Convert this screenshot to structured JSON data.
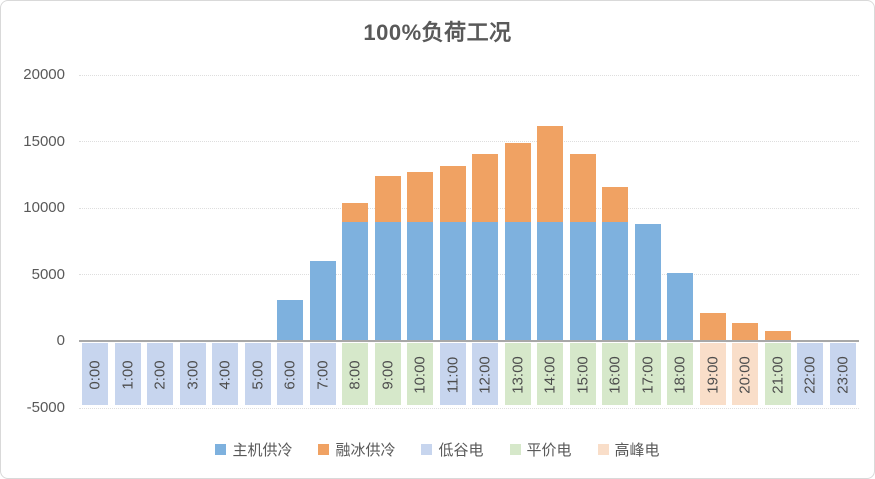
{
  "chart_data": {
    "type": "bar",
    "stacked": true,
    "title": "100%负荷工况",
    "xlabel": "",
    "ylabel": "",
    "ylim": [
      -5000,
      20000
    ],
    "yticks": [
      20000,
      15000,
      10000,
      5000,
      0,
      -5000
    ],
    "grid": true,
    "legend_position": "bottom",
    "categories": [
      "0:00",
      "1:00",
      "2:00",
      "3:00",
      "4:00",
      "5:00",
      "6:00",
      "7:00",
      "8:00",
      "9:00",
      "10:00",
      "11:00",
      "12:00",
      "13:00",
      "14:00",
      "15:00",
      "16:00",
      "17:00",
      "18:00",
      "19:00",
      "20:00",
      "21:00",
      "22:00",
      "23:00"
    ],
    "series": [
      {
        "name": "主机供冷",
        "color": "#7EB1DE",
        "values": [
          0,
          0,
          0,
          0,
          0,
          0,
          3100,
          6000,
          9000,
          9000,
          9000,
          9000,
          9000,
          9000,
          9000,
          9000,
          9000,
          8800,
          5100,
          0,
          0,
          0,
          0,
          0
        ]
      },
      {
        "name": "融冰供冷",
        "color": "#F0A263",
        "values": [
          0,
          0,
          0,
          0,
          0,
          0,
          0,
          0,
          1400,
          3400,
          3700,
          4200,
          5100,
          5900,
          7200,
          5100,
          2600,
          0,
          0,
          2100,
          1400,
          800,
          0,
          0
        ]
      },
      {
        "name": "低谷电",
        "color": "#C7D5EE",
        "values": [
          -5000,
          -5000,
          -5000,
          -5000,
          -5000,
          -5000,
          -5000,
          -5000,
          0,
          0,
          0,
          -5000,
          -5000,
          0,
          0,
          0,
          0,
          0,
          0,
          0,
          0,
          0,
          -5000,
          -5000
        ]
      },
      {
        "name": "平价电",
        "color": "#D6E8CA",
        "values": [
          0,
          0,
          0,
          0,
          0,
          0,
          0,
          0,
          -5000,
          -5000,
          -5000,
          0,
          0,
          -5000,
          -5000,
          -5000,
          -5000,
          -5000,
          -5000,
          0,
          0,
          -5000,
          0,
          0
        ]
      },
      {
        "name": "高峰电",
        "color": "#F9DEC9",
        "values": [
          0,
          0,
          0,
          0,
          0,
          0,
          0,
          0,
          0,
          0,
          0,
          0,
          0,
          0,
          0,
          0,
          0,
          0,
          0,
          -5000,
          -5000,
          0,
          0,
          0
        ]
      }
    ],
    "style": {
      "grid_color": "#dedede",
      "zero_axis_color": "#a8a8a8",
      "text_color": "#595959",
      "xlabel_color": "#4d4d4d"
    }
  }
}
